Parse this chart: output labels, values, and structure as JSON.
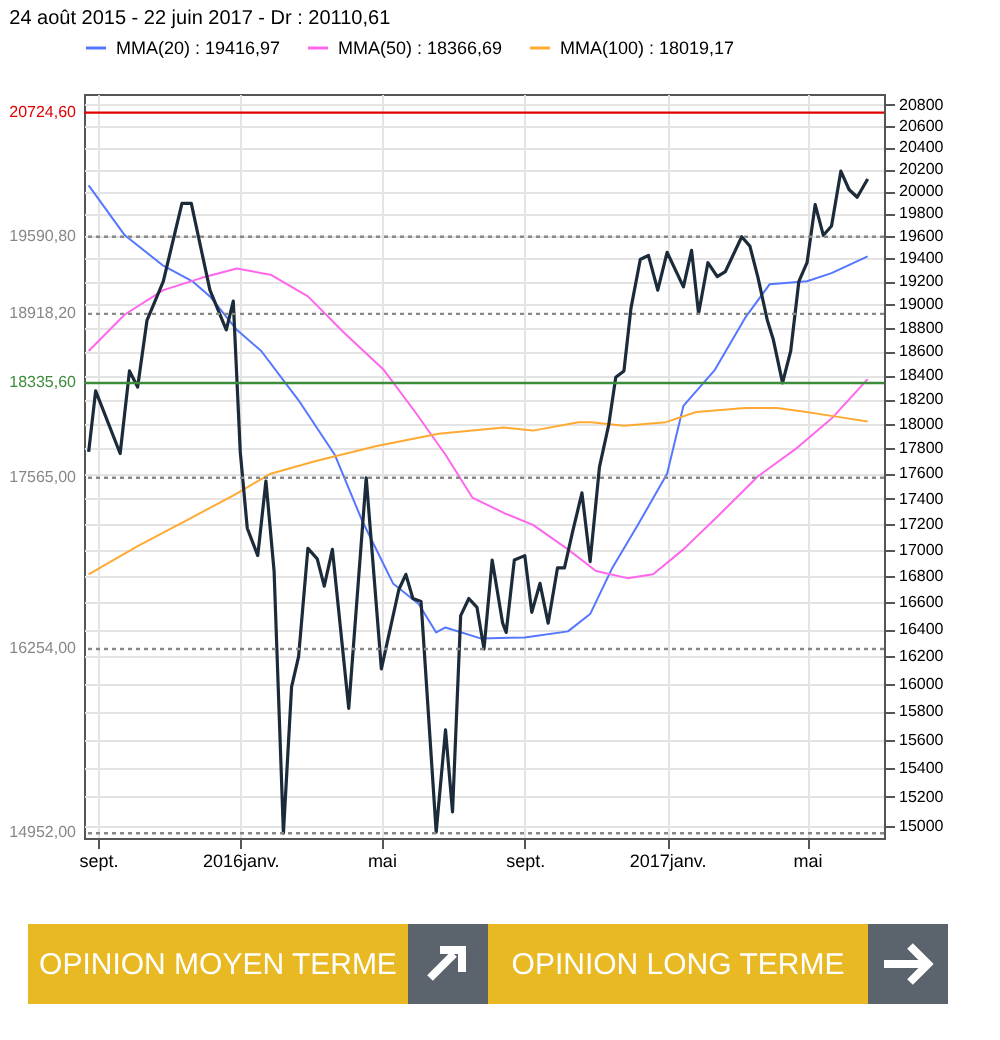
{
  "chart_data": {
    "type": "line",
    "title": "24 août 2015 - 22 juin 2017 - Dr : 20110,61",
    "xlim": [
      "2015-08-20",
      "2017-07-06"
    ],
    "xticks": [
      {
        "value": "2015-09-01",
        "label": "sept."
      },
      {
        "value": "2016-01-01",
        "label": "2016janv."
      },
      {
        "value": "2016-05-01",
        "label": "mai"
      },
      {
        "value": "2016-09-01",
        "label": "sept."
      },
      {
        "value": "2017-01-01",
        "label": "2017janv."
      },
      {
        "value": "2017-05-01",
        "label": "mai"
      }
    ],
    "ylim": [
      14920,
      20900
    ],
    "yticks": [
      15000,
      15200,
      15400,
      15600,
      15800,
      16000,
      16200,
      16400,
      16600,
      16800,
      17000,
      17200,
      17400,
      17600,
      17800,
      18000,
      18200,
      18400,
      18600,
      18800,
      19000,
      19200,
      19400,
      19600,
      19800,
      20000,
      20200,
      20400,
      20600,
      20800
    ],
    "log": "y",
    "grid": true,
    "legend": "top",
    "series": [
      {
        "name": "MMA(20) : 19416,97",
        "color": "#5577ff",
        "x": [
          "2015-08-24",
          "2015-09-24",
          "2015-10-27",
          "2015-11-21",
          "2015-12-06",
          "2015-12-29",
          "2016-01-19",
          "2016-02-20",
          "2016-03-22",
          "2016-04-15",
          "2016-05-11",
          "2016-06-02",
          "2016-06-17",
          "2016-06-25",
          "2016-07-25",
          "2016-09-01",
          "2016-10-08",
          "2016-10-27",
          "2016-11-15",
          "2016-12-07",
          "2017-01-01",
          "2017-01-15",
          "2017-02-11",
          "2017-03-09",
          "2017-03-30",
          "2017-05-01",
          "2017-05-22",
          "2017-06-22"
        ],
        "values": [
          20053,
          19604,
          19336,
          19200,
          19069,
          18782,
          18603,
          18192,
          17749,
          17216,
          16744,
          16588,
          16376,
          16413,
          16332,
          16339,
          16384,
          16513,
          16862,
          17194,
          17597,
          18146,
          18445,
          18886,
          19175,
          19200,
          19271,
          19417
        ]
      },
      {
        "name": "MMA(50) : 18366,69",
        "color": "#ff66ee",
        "x": [
          "2015-08-24",
          "2015-09-24",
          "2015-10-27",
          "2015-11-29",
          "2015-12-29",
          "2016-01-27",
          "2016-02-28",
          "2016-03-30",
          "2016-05-03",
          "2016-05-30",
          "2016-06-25",
          "2016-07-18",
          "2016-08-14",
          "2016-09-08",
          "2016-10-08",
          "2016-11-01",
          "2016-11-28",
          "2016-12-20",
          "2017-01-15",
          "2017-02-11",
          "2017-03-20",
          "2017-04-21",
          "2017-05-22",
          "2017-06-22"
        ],
        "values": [
          18603,
          18913,
          19123,
          19230,
          19311,
          19257,
          19069,
          18757,
          18445,
          18096,
          17749,
          17408,
          17287,
          17194,
          17004,
          16838,
          16784,
          16813,
          17004,
          17239,
          17577,
          17794,
          18042,
          18367
        ]
      },
      {
        "name": "MMA(100) : 18019,17",
        "color": "#ffaa33",
        "x": [
          "2015-08-24",
          "2015-10-05",
          "2015-11-18",
          "2015-12-27",
          "2016-01-27",
          "2016-03-05",
          "2016-04-26",
          "2016-06-19",
          "2016-08-14",
          "2016-09-08",
          "2016-10-17",
          "2016-10-28",
          "2016-11-25",
          "2016-12-31",
          "2017-01-26",
          "2017-03-09",
          "2017-04-05",
          "2017-04-26",
          "2017-05-29",
          "2017-06-22"
        ],
        "values": [
          16813,
          17029,
          17239,
          17430,
          17597,
          17697,
          17818,
          17919,
          17969,
          17944,
          18013,
          18013,
          17983,
          18013,
          18096,
          18129,
          18129,
          18102,
          18054,
          18019
        ]
      },
      {
        "color": "#1c2b3a",
        "x": [
          "2015-08-24",
          "2015-08-30",
          "2015-09-20",
          "2015-09-28",
          "2015-10-05",
          "2015-10-13",
          "2015-10-27",
          "2015-11-12",
          "2015-11-20",
          "2015-12-06",
          "2015-12-20",
          "2015-12-26",
          "2016-01-01",
          "2016-01-07",
          "2016-01-16",
          "2016-01-23",
          "2016-01-30",
          "2016-02-07",
          "2016-02-14",
          "2016-02-20",
          "2016-02-28",
          "2016-03-07",
          "2016-03-13",
          "2016-03-20",
          "2016-04-03",
          "2016-04-18",
          "2016-05-01",
          "2016-05-16",
          "2016-05-22",
          "2016-05-28",
          "2016-06-04",
          "2016-06-17",
          "2016-06-25",
          "2016-07-01",
          "2016-07-08",
          "2016-07-15",
          "2016-07-22",
          "2016-07-28",
          "2016-08-04",
          "2016-08-13",
          "2016-08-16",
          "2016-08-23",
          "2016-09-01",
          "2016-09-07",
          "2016-09-14",
          "2016-09-21",
          "2016-09-29",
          "2016-10-05",
          "2016-10-12",
          "2016-10-20",
          "2016-10-27",
          "2016-11-04",
          "2016-11-12",
          "2016-11-18",
          "2016-11-25",
          "2016-12-01",
          "2016-12-09",
          "2016-12-16",
          "2016-12-24",
          "2017-01-01",
          "2017-01-15",
          "2017-01-22",
          "2017-01-28",
          "2017-02-05",
          "2017-02-13",
          "2017-02-20",
          "2017-03-06",
          "2017-03-13",
          "2017-03-20",
          "2017-03-28",
          "2017-04-02",
          "2017-04-10",
          "2017-04-17",
          "2017-04-24",
          "2017-05-01",
          "2017-05-08",
          "2017-05-15",
          "2017-05-22",
          "2017-05-30",
          "2017-06-06",
          "2017-06-13",
          "2017-06-22"
        ],
        "values": [
          17772,
          18270,
          17759,
          18436,
          18302,
          18862,
          19200,
          19889,
          19889,
          19123,
          18782,
          19028,
          17772,
          17168,
          16956,
          17539,
          16838,
          14952,
          15977,
          16197,
          17012,
          16931,
          16723,
          17004,
          15822,
          17565,
          16108,
          16698,
          16813,
          16630,
          16608,
          14960,
          15669,
          15097,
          16501,
          16630,
          16563,
          16254,
          16922,
          16445,
          16376,
          16922,
          16956,
          16526,
          16744,
          16445,
          16862,
          16862,
          17141,
          17445,
          16910,
          17649,
          17994,
          18383,
          18436,
          18966,
          19390,
          19427,
          19123,
          19454,
          19151,
          19471,
          18922,
          19362,
          19240,
          19285,
          19591,
          19508,
          19230,
          18862,
          18703,
          18336,
          18603,
          19200,
          19362,
          19879,
          19604,
          19687,
          20182,
          20015,
          19945,
          20111
        ]
      }
    ],
    "ref_lines": [
      {
        "axis": "y",
        "value": 20724.6,
        "label": "20724,60",
        "color": "#e00000",
        "line_style": "solid"
      },
      {
        "axis": "y",
        "value": 19590.8,
        "label": "19590,80",
        "color": "#888888",
        "line_style": "dotted"
      },
      {
        "axis": "y",
        "value": 18918.2,
        "label": "18918,20",
        "color": "#888888",
        "line_style": "dotted"
      },
      {
        "axis": "y",
        "value": 18335.6,
        "label": "18335,60",
        "color": "#3c8c3c",
        "line_style": "solid"
      },
      {
        "axis": "y",
        "value": 17565,
        "label": "17565,00",
        "color": "#888888",
        "line_style": "dotted"
      },
      {
        "axis": "y",
        "value": 16254,
        "label": "16254,00",
        "color": "#888888",
        "line_style": "dotted"
      },
      {
        "axis": "y",
        "value": 14952,
        "label": "14952,00",
        "color": "#888888",
        "line_style": "dotted"
      }
    ],
    "annotations": [
      "OPINION MOYEN TERME",
      "OPINION LONG TERME"
    ]
  }
}
